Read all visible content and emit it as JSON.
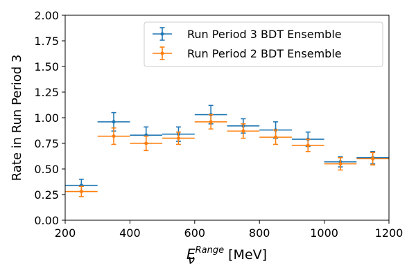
{
  "chart_data": {
    "type": "scatter",
    "title": "",
    "xlabel": {
      "symbol": "E",
      "sub": "ν",
      "sup": "Range",
      "unit": " [MeV]"
    },
    "ylabel": "Rate in Run Period 3",
    "xlim": [
      200,
      1200
    ],
    "ylim": [
      0.0,
      2.0
    ],
    "x_ticks": [
      "200",
      "400",
      "600",
      "800",
      "1000",
      "1200"
    ],
    "y_ticks": [
      "0.00",
      "0.25",
      "0.50",
      "0.75",
      "1.00",
      "1.25",
      "1.50",
      "1.75",
      "2.00"
    ],
    "legend_position": "top-right",
    "series": [
      {
        "name": "Run Period 3 BDT Ensemble",
        "color": "#1f77b4",
        "x": [
          250,
          350,
          450,
          550,
          650,
          750,
          850,
          950,
          1050,
          1150
        ],
        "xerr": [
          50,
          50,
          50,
          50,
          50,
          50,
          50,
          50,
          50,
          50
        ],
        "y": [
          0.34,
          0.96,
          0.83,
          0.84,
          1.03,
          0.92,
          0.88,
          0.79,
          0.57,
          0.61
        ],
        "yerr": [
          0.06,
          0.09,
          0.08,
          0.07,
          0.09,
          0.07,
          0.08,
          0.07,
          0.05,
          0.06
        ]
      },
      {
        "name": "Run Period 2 BDT Ensemble",
        "color": "#ff7f0e",
        "x": [
          250,
          350,
          450,
          550,
          650,
          750,
          850,
          950,
          1050,
          1150
        ],
        "xerr": [
          50,
          50,
          50,
          50,
          50,
          50,
          50,
          50,
          50,
          50
        ],
        "y": [
          0.28,
          0.82,
          0.75,
          0.8,
          0.96,
          0.87,
          0.81,
          0.73,
          0.55,
          0.6
        ],
        "yerr": [
          0.05,
          0.08,
          0.07,
          0.06,
          0.07,
          0.07,
          0.07,
          0.06,
          0.06,
          0.06
        ]
      }
    ]
  }
}
